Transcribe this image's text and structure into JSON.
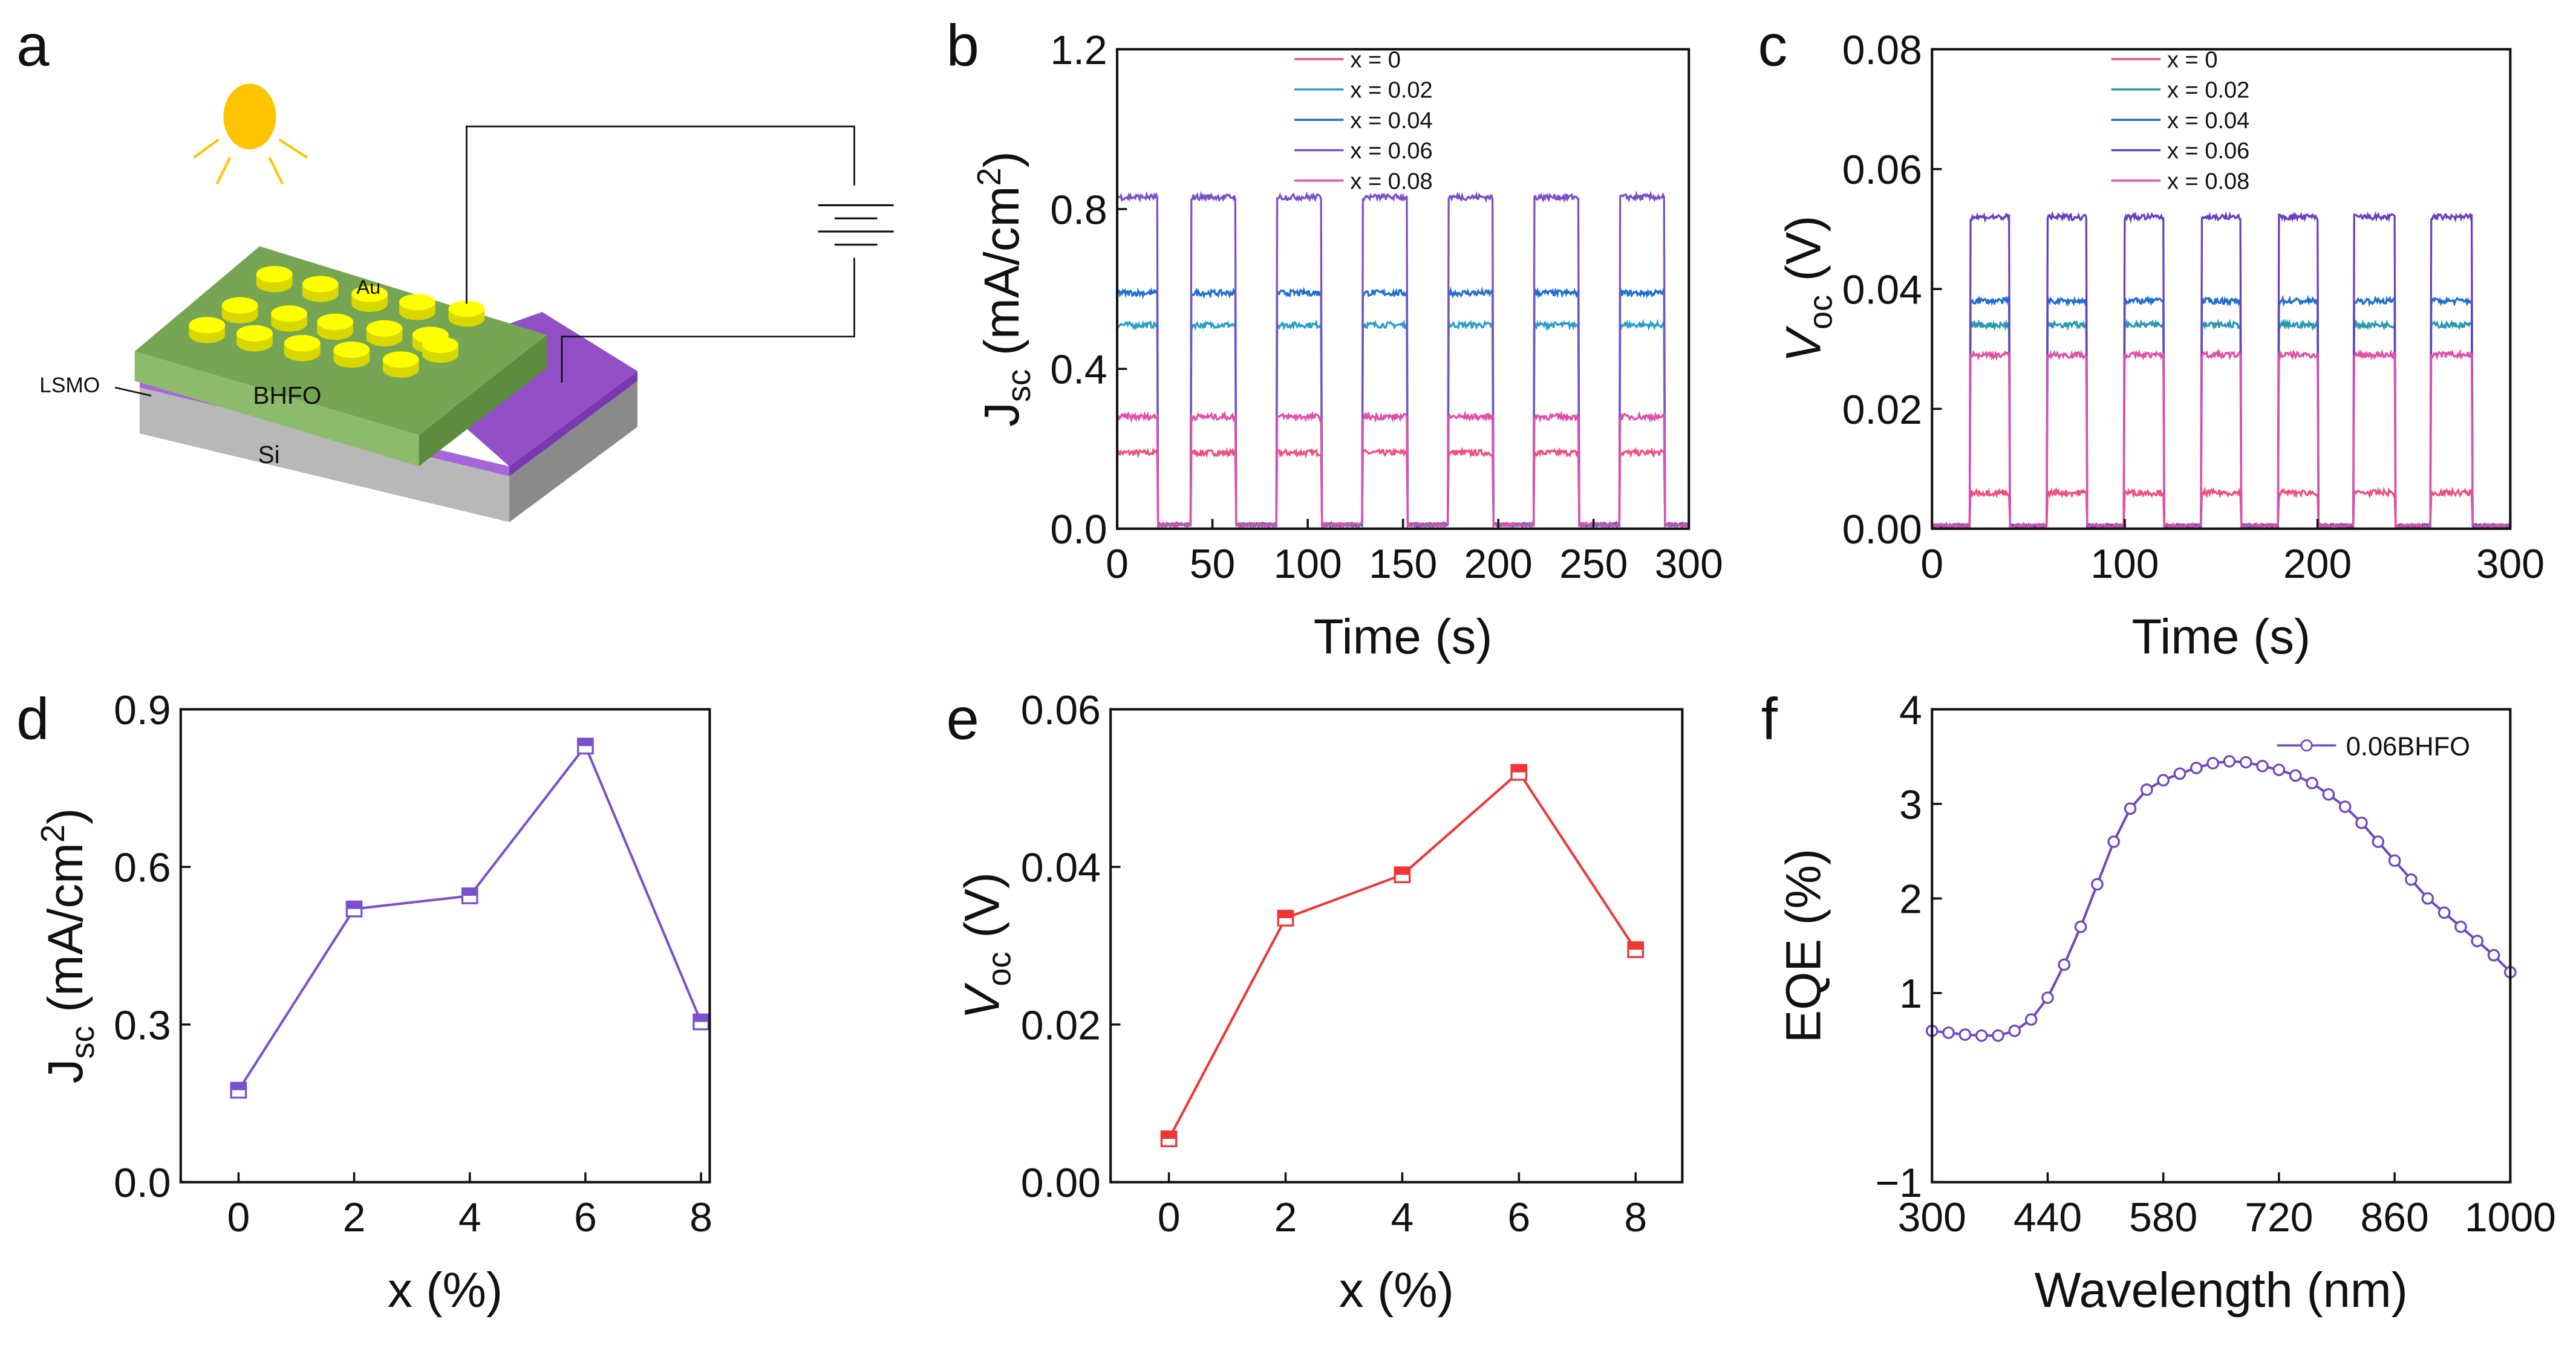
{
  "panel_letters": [
    "a",
    "b",
    "c",
    "d",
    "e",
    "f"
  ],
  "schematic": {
    "labels": {
      "au": "Au",
      "bhfo": "BHFO",
      "lsmo": "LSMO",
      "si": "Si"
    },
    "colors": {
      "sun": "#ffc400",
      "bhfo_top": "#76a654",
      "bhfo_front": "#8dbb6c",
      "bhfo_side": "#5e8c3e",
      "lsmo": "#9350c6",
      "lsmo_front": "#a765dc",
      "si_front": "#b8b8b8",
      "si_side": "#8a8a8a",
      "au": "#ffff00"
    }
  },
  "chart_data": [
    {
      "id": "b",
      "type": "line",
      "xlabel": "Time (s)",
      "ylabel": "J",
      "ylabel_sub": "sc",
      "ylabel_unit": " (mA/cm",
      "ylabel_sup": "2",
      "ylabel_end": ")",
      "xlim": [
        0,
        300
      ],
      "ylim": [
        0,
        1.2
      ],
      "xticks": [
        "0",
        "50",
        "100",
        "150",
        "200",
        "250",
        "300"
      ],
      "xtick_values": [
        0,
        50,
        100,
        150,
        200,
        250,
        300
      ],
      "yticks": [
        "0.0",
        "0.4",
        "0.8",
        "1.2"
      ],
      "ytick_values": [
        0,
        0.4,
        0.8,
        1.2
      ],
      "on_intervals": [
        [
          0,
          21
        ],
        [
          39,
          62
        ],
        [
          84,
          107
        ],
        [
          129,
          152
        ],
        [
          174,
          197
        ],
        [
          219,
          242
        ],
        [
          264,
          287
        ]
      ],
      "off_value": 0.01,
      "series": [
        {
          "name": "x = 0",
          "on_value": 0.19,
          "color": "#f0507a"
        },
        {
          "name": "x = 0.02",
          "on_value": 0.51,
          "color": "#2aa0c8"
        },
        {
          "name": "x = 0.04",
          "on_value": 0.59,
          "color": "#1f6fd0"
        },
        {
          "name": "x = 0.06",
          "on_value": 0.83,
          "color": "#7a4fc8"
        },
        {
          "name": "x = 0.08",
          "on_value": 0.28,
          "color": "#e050a8"
        }
      ],
      "legend": "top-center"
    },
    {
      "id": "c",
      "type": "line",
      "xlabel": "Time (s)",
      "ylabel": "V",
      "ylabel_sub": "oc",
      "ylabel_unit": " (V)",
      "ylabel_sup": "",
      "ylabel_end": "",
      "xlim": [
        0,
        300
      ],
      "ylim": [
        0,
        0.08
      ],
      "xticks": [
        "0",
        "100",
        "200",
        "300"
      ],
      "xtick_values": [
        0,
        100,
        200,
        300
      ],
      "yticks": [
        "0.00",
        "0.02",
        "0.04",
        "0.06",
        "0.08"
      ],
      "ytick_values": [
        0,
        0.02,
        0.04,
        0.06,
        0.08
      ],
      "on_intervals": [
        [
          20,
          40
        ],
        [
          60,
          80
        ],
        [
          100,
          120
        ],
        [
          140,
          160
        ],
        [
          180,
          200
        ],
        [
          219,
          240
        ],
        [
          259,
          280
        ]
      ],
      "off_value": 0.0005,
      "series": [
        {
          "name": "x = 0",
          "on_value": 0.006,
          "color": "#f0507a"
        },
        {
          "name": "x = 0.02",
          "on_value": 0.034,
          "color": "#2a9ab0"
        },
        {
          "name": "x = 0.04",
          "on_value": 0.038,
          "color": "#1f6fd0"
        },
        {
          "name": "x = 0.06",
          "on_value": 0.052,
          "color": "#6a3fc0"
        },
        {
          "name": "x = 0.08",
          "on_value": 0.029,
          "color": "#e050a8"
        }
      ],
      "legend": "top-center"
    },
    {
      "id": "d",
      "type": "line",
      "xlabel": "x (%)",
      "ylabel": "J",
      "ylabel_sub": "sc",
      "ylabel_unit": " (mA/cm",
      "ylabel_sup": "2",
      "ylabel_end": ")",
      "xlim": [
        -1,
        8.15
      ],
      "ylim": [
        0,
        0.9
      ],
      "xticks": [
        "0",
        "2",
        "4",
        "6",
        "8"
      ],
      "xtick_values": [
        0,
        2,
        4,
        6,
        8
      ],
      "yticks": [
        "0.0",
        "0.3",
        "0.6",
        "0.9"
      ],
      "ytick_values": [
        0,
        0.3,
        0.6,
        0.9
      ],
      "x": [
        0,
        2,
        4,
        6,
        8
      ],
      "y": [
        0.175,
        0.52,
        0.545,
        0.83,
        0.305
      ],
      "color": "#7a4fd0",
      "marker": "half-filled-square"
    },
    {
      "id": "e",
      "type": "line",
      "xlabel": "x (%)",
      "ylabel": "V",
      "ylabel_sub": "oc",
      "ylabel_unit": " (V)",
      "ylabel_sup": "",
      "ylabel_end": "",
      "xlim": [
        -1,
        8.8
      ],
      "ylim": [
        0,
        0.06
      ],
      "xticks": [
        "0",
        "2",
        "4",
        "6",
        "8"
      ],
      "xtick_values": [
        0,
        2,
        4,
        6,
        8
      ],
      "yticks": [
        "0.00",
        "0.02",
        "0.04",
        "0.06"
      ],
      "ytick_values": [
        0,
        0.02,
        0.04,
        0.06
      ],
      "x": [
        0,
        2,
        4,
        6,
        8
      ],
      "y": [
        0.0055,
        0.0335,
        0.039,
        0.052,
        0.0295
      ],
      "color": "#f03535",
      "marker": "half-filled-square"
    },
    {
      "id": "f",
      "type": "line",
      "xlabel": "Wavelength (nm)",
      "ylabel": "EQE (%)",
      "ylabel_sub": "",
      "ylabel_unit": "",
      "ylabel_sup": "",
      "ylabel_end": "",
      "xlim": [
        300,
        1000
      ],
      "ylim": [
        -1,
        4
      ],
      "xticks": [
        "300",
        "440",
        "580",
        "720",
        "860",
        "1000"
      ],
      "xtick_values": [
        300,
        440,
        580,
        720,
        860,
        1000
      ],
      "yticks": [
        "−1",
        "1",
        "2",
        "3",
        "4"
      ],
      "ytick_values": [
        -1,
        1,
        2,
        3,
        4
      ],
      "x": [
        300,
        320,
        340,
        360,
        380,
        400,
        420,
        440,
        460,
        480,
        500,
        520,
        540,
        560,
        580,
        600,
        620,
        640,
        660,
        680,
        700,
        720,
        740,
        760,
        780,
        800,
        820,
        840,
        860,
        880,
        900,
        920,
        940,
        960,
        980,
        1000
      ],
      "y": [
        0.6,
        0.58,
        0.56,
        0.55,
        0.55,
        0.6,
        0.72,
        0.95,
        1.3,
        1.7,
        2.15,
        2.6,
        2.95,
        3.15,
        3.25,
        3.32,
        3.38,
        3.43,
        3.45,
        3.44,
        3.4,
        3.36,
        3.3,
        3.22,
        3.1,
        2.97,
        2.8,
        2.6,
        2.4,
        2.2,
        2.0,
        1.85,
        1.7,
        1.55,
        1.4,
        1.22
      ],
      "color": "#7048c0",
      "marker": "open-circle",
      "series_name": "0.06BHFO",
      "legend": "top-right"
    }
  ]
}
